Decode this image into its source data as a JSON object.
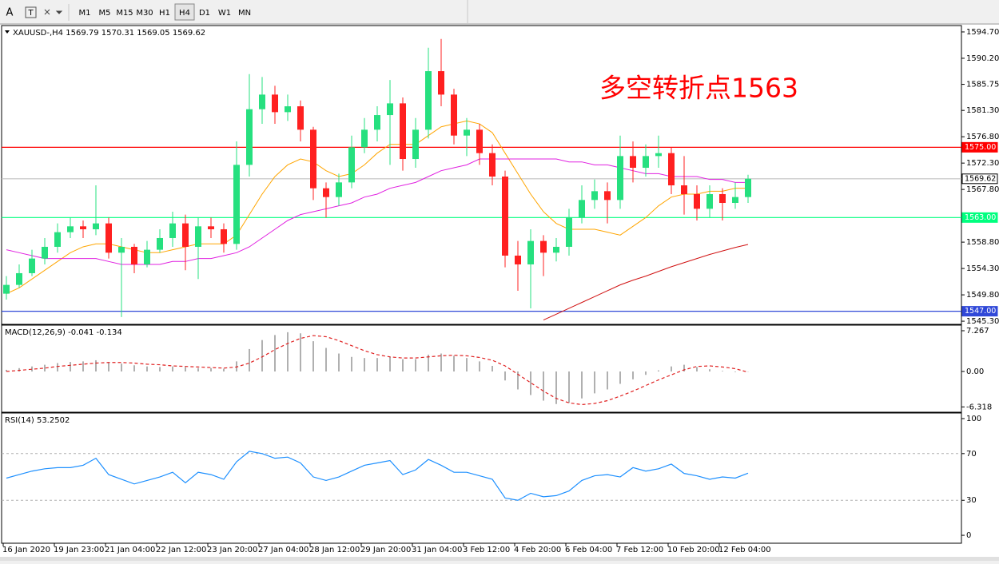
{
  "toolbar": {
    "tools": [
      "A",
      "T"
    ],
    "timeframes": [
      "M1",
      "M5",
      "M15",
      "M30",
      "H1",
      "H4",
      "D1",
      "W1",
      "MN"
    ],
    "active": "H4"
  },
  "chart_data": [
    {
      "type": "candlestick",
      "title": "XAUUSD-,H4  1569.79 1570.31 1569.05 1569.62",
      "annotation": "多空转折点1563",
      "annotation_color": "#ff0000",
      "up_color": "#26e07f",
      "down_color": "#ff2020",
      "categories": [
        "16 Jan 2020",
        null,
        null,
        null,
        "19 Jan 23:00",
        null,
        null,
        null,
        "21 Jan 04:00",
        null,
        null,
        null,
        "22 Jan 12:00",
        null,
        null,
        null,
        "23 Jan 20:00",
        null,
        null,
        null,
        "27 Jan 04:00",
        null,
        null,
        null,
        "28 Jan 12:00",
        null,
        null,
        null,
        "29 Jan 20:00",
        null,
        null,
        null,
        "31 Jan 04:00",
        null,
        null,
        null,
        "3 Feb 12:00",
        null,
        null,
        null,
        "4 Feb 20:00",
        null,
        null,
        null,
        "6 Feb 04:00",
        null,
        null,
        null,
        "7 Feb 12:00",
        null,
        null,
        null,
        "10 Feb 20:00",
        null,
        null,
        null,
        "12 Feb 04:00",
        null,
        null
      ],
      "open": [
        1550.0,
        1551.5,
        1553.5,
        1556.0,
        1558.0,
        1560.5,
        1561.5,
        1561.0,
        1562.0,
        1557.0,
        1558.0,
        1555.0,
        1557.5,
        1559.5,
        1562.0,
        1558.0,
        1561.5,
        1561.0,
        1558.5,
        1572.0,
        1581.5,
        1584.0,
        1581.0,
        1582.0,
        1578.0,
        1568.0,
        1566.5,
        1569.0,
        1575.0,
        1578.0,
        1580.5,
        1582.5,
        1573.0,
        1578.0,
        1588.0,
        1584.0,
        1577.0,
        1578.0,
        1574.0,
        1570.0,
        1556.5,
        1555.0,
        1559.0,
        1557.0,
        1558.0,
        1563.0,
        1566.0,
        1567.5,
        1566.0,
        1573.5,
        1571.5,
        1573.5,
        1574.0,
        1568.5,
        1567.0,
        1564.5,
        1567.0,
        1565.5,
        1566.5
      ],
      "high": [
        1553.0,
        1555.0,
        1557.5,
        1559.5,
        1562.0,
        1563.0,
        1562.5,
        1568.5,
        1563.0,
        1559.5,
        1558.5,
        1559.0,
        1561.0,
        1564.0,
        1563.5,
        1563.0,
        1563.0,
        1562.0,
        1576.0,
        1587.5,
        1587.0,
        1585.5,
        1584.0,
        1583.0,
        1578.5,
        1569.0,
        1570.5,
        1577.0,
        1580.0,
        1582.0,
        1586.5,
        1583.5,
        1580.0,
        1592.0,
        1593.5,
        1585.0,
        1580.0,
        1579.0,
        1575.5,
        1571.0,
        1559.0,
        1561.0,
        1560.0,
        1559.5,
        1564.5,
        1568.5,
        1569.5,
        1569.0,
        1577.0,
        1576.0,
        1575.5,
        1577.0,
        1575.0,
        1573.5,
        1568.5,
        1568.5,
        1568.0,
        1569.0,
        1570.31
      ],
      "low": [
        1549.0,
        1551.0,
        1553.0,
        1555.0,
        1557.0,
        1559.5,
        1559.5,
        1560.0,
        1556.0,
        1546.0,
        1553.5,
        1554.5,
        1557.0,
        1558.0,
        1554.0,
        1552.5,
        1559.5,
        1557.0,
        1557.5,
        1570.0,
        1579.0,
        1579.0,
        1579.5,
        1576.0,
        1566.0,
        1563.0,
        1565.0,
        1568.0,
        1574.0,
        1576.0,
        1572.0,
        1571.0,
        1571.5,
        1576.5,
        1582.0,
        1575.5,
        1573.5,
        1572.0,
        1568.5,
        1554.5,
        1550.5,
        1547.5,
        1553.0,
        1555.5,
        1556.5,
        1562.0,
        1564.5,
        1562.0,
        1564.5,
        1569.0,
        1570.0,
        1571.5,
        1567.0,
        1563.5,
        1562.5,
        1563.0,
        1562.5,
        1564.5,
        1565.5
      ],
      "close": [
        1551.5,
        1553.5,
        1556.0,
        1558.0,
        1560.5,
        1561.5,
        1561.0,
        1562.0,
        1557.0,
        1558.0,
        1555.0,
        1557.5,
        1559.5,
        1562.0,
        1558.0,
        1561.5,
        1561.0,
        1558.5,
        1572.0,
        1581.5,
        1584.0,
        1581.0,
        1582.0,
        1578.0,
        1568.0,
        1566.5,
        1569.0,
        1575.0,
        1578.0,
        1580.5,
        1582.5,
        1573.0,
        1578.0,
        1588.0,
        1584.0,
        1577.0,
        1578.0,
        1574.0,
        1570.0,
        1556.5,
        1555.0,
        1559.0,
        1557.0,
        1558.0,
        1563.0,
        1566.0,
        1567.5,
        1566.0,
        1573.5,
        1571.5,
        1573.5,
        1574.0,
        1568.5,
        1567.0,
        1564.5,
        1567.0,
        1565.5,
        1566.5,
        1569.62
      ],
      "lines": [
        {
          "color": "#ffa500",
          "values": [
            1550,
            1551,
            1552.5,
            1554,
            1555.5,
            1557,
            1558,
            1558.5,
            1558.5,
            1558,
            1557.5,
            1557,
            1557,
            1557.5,
            1558,
            1558.5,
            1558.5,
            1558.5,
            1560,
            1563.5,
            1567,
            1570,
            1572,
            1573,
            1572.5,
            1571,
            1570,
            1570.5,
            1572,
            1574,
            1575.5,
            1575.5,
            1575.5,
            1577,
            1578.5,
            1579,
            1579.5,
            1579,
            1577.5,
            1574,
            1570.5,
            1567,
            1564,
            1562,
            1561,
            1561,
            1561,
            1560.5,
            1560,
            1561.5,
            1563,
            1565,
            1566.5,
            1567,
            1567,
            1567.5,
            1567.5,
            1568,
            1568
          ]
        },
        {
          "color": "#e020e0",
          "values": [
            1557.5,
            1557,
            1556.5,
            1556,
            1556,
            1556,
            1556,
            1556,
            1555.5,
            1555,
            1555,
            1555,
            1555,
            1555.5,
            1555.5,
            1556,
            1556,
            1556.5,
            1557,
            1558,
            1559.5,
            1561,
            1562.5,
            1563.5,
            1564,
            1564.5,
            1565,
            1565.5,
            1566.5,
            1567,
            1568,
            1568.5,
            1569,
            1570,
            1571,
            1571.5,
            1572,
            1573,
            1573,
            1573,
            1573,
            1573,
            1573,
            1573,
            1572.5,
            1572.5,
            1572,
            1572,
            1571.5,
            1571,
            1570.5,
            1570.5,
            1570,
            1570,
            1570,
            1569.5,
            1569.5,
            1569,
            1569
          ]
        },
        {
          "color": "#d01010",
          "values": [
            null,
            null,
            null,
            null,
            null,
            null,
            null,
            null,
            null,
            null,
            null,
            null,
            null,
            null,
            null,
            null,
            null,
            null,
            null,
            null,
            null,
            null,
            null,
            null,
            null,
            null,
            null,
            null,
            null,
            null,
            null,
            null,
            null,
            null,
            null,
            null,
            null,
            null,
            null,
            null,
            null,
            null,
            1545.5,
            1546.5,
            1547.5,
            1548.5,
            1549.5,
            1550.5,
            1551.5,
            1552.3,
            1553,
            1553.8,
            1554.6,
            1555.3,
            1556,
            1556.7,
            1557.3,
            1557.9,
            1558.4
          ]
        }
      ],
      "hlines": [
        {
          "value": 1575.0,
          "label": "1575.00",
          "color": "#ff0000",
          "text_color": "#ffffff"
        },
        {
          "value": 1569.62,
          "label": "1569.62",
          "color": "#c0c0c0",
          "text_color": "#000000"
        },
        {
          "value": 1563.0,
          "label": "1563.00",
          "color": "#00ff7f",
          "text_color": "#ffffff"
        },
        {
          "value": 1547.0,
          "label": "1547.00",
          "color": "#3048d8",
          "text_color": "#ffffff"
        }
      ],
      "ylim": [
        1544.9,
        1595.65
      ],
      "yticks": [
        {
          "value": 1594.7,
          "label": "1594.70"
        },
        {
          "value": 1590.2,
          "label": "1590.20"
        },
        {
          "value": 1585.75,
          "label": "1585.75"
        },
        {
          "value": 1581.3,
          "label": "1581.30"
        },
        {
          "value": 1576.8,
          "label": "1576.80"
        },
        {
          "value": 1572.3,
          "label": "1572.30"
        },
        {
          "value": 1567.8,
          "label": "1567.80"
        },
        {
          "value": 1558.8,
          "label": "1558.80"
        },
        {
          "value": 1554.3,
          "label": "1554.30"
        },
        {
          "value": 1549.8,
          "label": "1549.80"
        },
        {
          "value": 1545.3,
          "label": "1545.30"
        }
      ]
    },
    {
      "type": "macd",
      "title": "MACD(12,26,9) -0.041 -0.134",
      "color": "#b0b0b0",
      "values": [
        0.3,
        0.6,
        0.9,
        1.2,
        1.5,
        1.7,
        1.8,
        2.0,
        1.6,
        1.4,
        1.1,
        0.9,
        0.8,
        0.9,
        0.8,
        0.6,
        0.6,
        0.5,
        1.8,
        4.0,
        5.6,
        6.5,
        7.0,
        6.8,
        5.4,
        4.2,
        3.2,
        2.6,
        2.4,
        2.4,
        2.6,
        2.2,
        2.2,
        3.0,
        3.2,
        2.8,
        2.4,
        1.8,
        1.0,
        -1.6,
        -3.2,
        -4.2,
        -5.2,
        -5.8,
        -5.6,
        -4.8,
        -3.9,
        -3.2,
        -2.2,
        -1.4,
        -0.6,
        0.2,
        0.9,
        1.2,
        0.8,
        0.4,
        0.1,
        -0.1,
        -0.041
      ],
      "signal": {
        "color": "#e02020",
        "values": [
          0,
          0.2,
          0.4,
          0.6,
          0.9,
          1.1,
          1.3,
          1.5,
          1.6,
          1.6,
          1.5,
          1.3,
          1.2,
          1.0,
          0.9,
          0.8,
          0.7,
          0.6,
          0.8,
          1.5,
          2.6,
          3.9,
          5.0,
          5.9,
          6.4,
          6.2,
          5.5,
          4.6,
          3.7,
          3.0,
          2.6,
          2.4,
          2.4,
          2.6,
          2.8,
          2.9,
          2.8,
          2.5,
          2.0,
          1.0,
          -0.5,
          -2.0,
          -3.5,
          -4.8,
          -5.6,
          -5.9,
          -5.7,
          -5.2,
          -4.4,
          -3.5,
          -2.5,
          -1.5,
          -0.6,
          0.3,
          0.9,
          1.0,
          0.8,
          0.5,
          -0.134
        ]
      },
      "ylim": [
        -7.12,
        8.12
      ],
      "yticks": [
        7.267,
        {
          "value": 0,
          "label": "0.00"
        },
        -6.318
      ]
    },
    {
      "type": "line",
      "title": "RSI(14) 53.2502",
      "color": "#1e90ff",
      "values": [
        49,
        52,
        55,
        57,
        58,
        58,
        60,
        66,
        52,
        48,
        44,
        47,
        50,
        54,
        45,
        54,
        52,
        48,
        63,
        72,
        70,
        66,
        67,
        62,
        50,
        47,
        50,
        55,
        60,
        62,
        64,
        52,
        56,
        65,
        60,
        54,
        54,
        51,
        48,
        32,
        30,
        36,
        33,
        34,
        38,
        47,
        51,
        52,
        50,
        58,
        55,
        57,
        61,
        53,
        51,
        48,
        50,
        49,
        53.25
      ],
      "levels": [
        70,
        30
      ],
      "ylim": [
        -6.8,
        104.1
      ],
      "yticks": [
        100,
        70,
        30,
        0
      ]
    }
  ]
}
